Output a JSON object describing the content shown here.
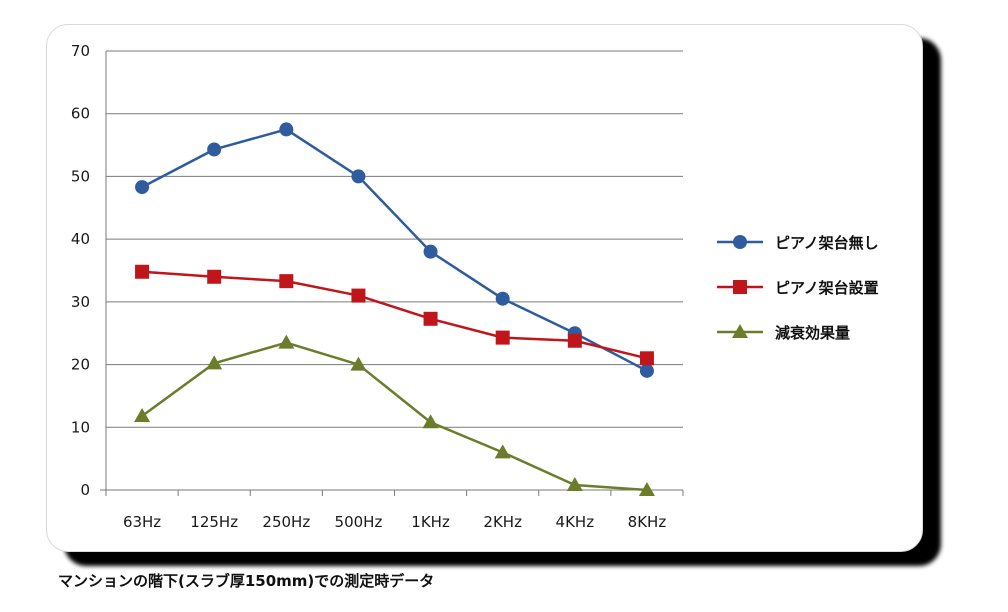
{
  "caption": "マンションの階下(スラブ厚150mm)での測定時データ",
  "chart_data": {
    "type": "line",
    "title": "",
    "xlabel": "",
    "ylabel": "",
    "categories": [
      "63Hz",
      "125Hz",
      "250Hz",
      "500Hz",
      "1KHz",
      "2KHz",
      "4KHz",
      "8KHz"
    ],
    "ylim": [
      0,
      70
    ],
    "yticks": [
      0,
      10,
      20,
      30,
      40,
      50,
      60,
      70
    ],
    "grid": true,
    "legend_position": "right",
    "series": [
      {
        "name": "ピアノ架台無し",
        "color": "#2e5c9e",
        "marker": "circle",
        "values": [
          48.3,
          54.3,
          57.5,
          50.0,
          38.0,
          30.5,
          25.0,
          19.0
        ]
      },
      {
        "name": "ピアノ架台設置",
        "color": "#c0161b",
        "marker": "square",
        "values": [
          34.8,
          34.0,
          33.3,
          31.0,
          27.3,
          24.3,
          23.8,
          21.0
        ]
      },
      {
        "name": "減衰効果量",
        "color": "#6b7d2a",
        "marker": "triangle",
        "values": [
          11.8,
          20.2,
          23.5,
          20.0,
          10.8,
          6.0,
          0.8,
          0.0
        ]
      }
    ]
  }
}
